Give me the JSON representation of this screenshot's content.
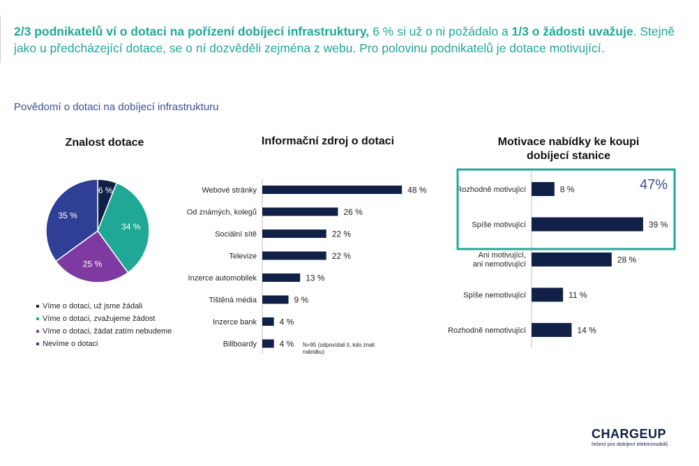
{
  "headline": {
    "p1": "2/3 podnikatelů ví o dotaci na pořízení dobíjecí infrastruktury,",
    "p2": " 6 % si už o ni požádalo a ",
    "p3": "1/3 o žádosti uvažuje",
    "p4": ". Stejně jako u předcházející dotace, se o ní dozvěděli zejména z webu. Pro polovinu podnikatelů je dotace motivující."
  },
  "subtitle": "Povědomí o dotaci na dobíjecí infrastrukturu",
  "note": "N=95 (odpovídali ti, kdo znali nabídku)",
  "brand": {
    "name": "CHARGEUP",
    "tagline": "řešení pro dobíjení elektromobilů"
  },
  "colors": {
    "navy": "#102046",
    "teal": "#20a896",
    "purple": "#7e3aa0",
    "blue": "#2f3f95",
    "highlight": "#20a896"
  },
  "highlight_label": "47%",
  "chart_data": [
    {
      "type": "pie",
      "title": "Znalost dotace",
      "slices": [
        {
          "label": "Víme o dotaci, už jsme žádali",
          "value": 6,
          "display": "6 %",
          "color": "#102046"
        },
        {
          "label": "Víme o dotaci, zvažujeme žádost",
          "value": 34,
          "display": "34 %",
          "color": "#20a896"
        },
        {
          "label": "Víme o dotaci, žádat zatím nebudeme",
          "value": 25,
          "display": "25 %",
          "color": "#7e3aa0"
        },
        {
          "label": "Nevíme o dotaci",
          "value": 35,
          "display": "35 %",
          "color": "#2f3f95"
        }
      ]
    },
    {
      "type": "bar",
      "orientation": "horizontal",
      "title": "Informační zdroj o dotaci",
      "categories": [
        "Webové stránky",
        "Od známých, kolegů",
        "Sociální sítě",
        "Televize",
        "Inzerce automobilek",
        "Tištěná média",
        "Inzerce bank",
        "Billboardy"
      ],
      "values": [
        48,
        26,
        22,
        22,
        13,
        9,
        4,
        4
      ],
      "labels": [
        "48 %",
        "26 %",
        "22 %",
        "22 %",
        "13 %",
        "9 %",
        "4 %",
        "4 %"
      ],
      "color": "#102046"
    },
    {
      "type": "bar",
      "orientation": "horizontal",
      "title": "Motivace nabídky ke koupi dobíjecí stanice",
      "categories": [
        "Rozhodně motivující",
        "Spíše motivující",
        "Ani motivující, ani nemotivující",
        "Spíše nemotivující",
        "Rozhodně nemotivující"
      ],
      "values": [
        8,
        39,
        28,
        11,
        14
      ],
      "labels": [
        "8 %",
        "39 %",
        "28 %",
        "11 %",
        "14 %"
      ],
      "color": "#102046"
    }
  ]
}
